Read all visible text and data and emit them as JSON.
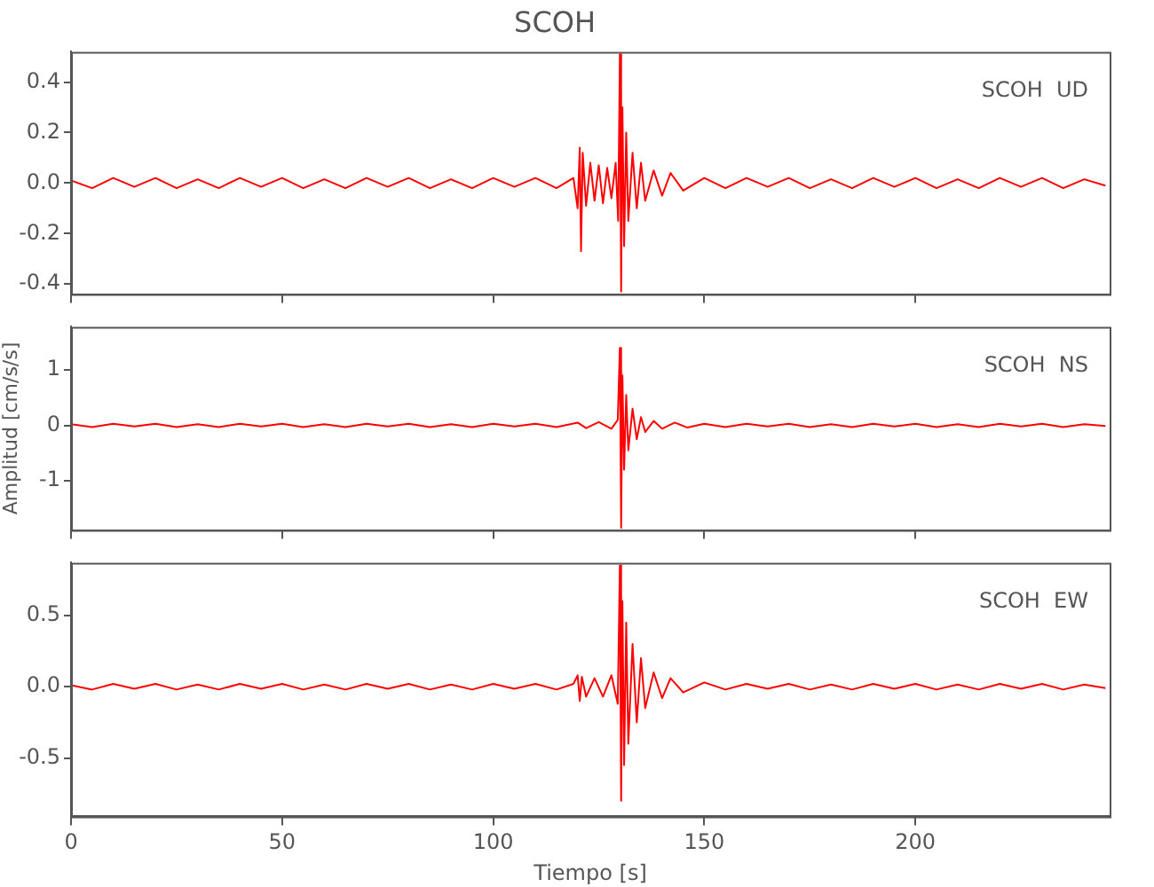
{
  "chart_data": [
    {
      "type": "line",
      "title": "SCOH",
      "annotations": [
        "SCOH  UD"
      ],
      "xlim": [
        0,
        246
      ],
      "xticks": [
        0,
        50,
        100,
        150,
        200
      ],
      "ylim": [
        -0.44,
        0.52
      ],
      "yticks": [
        -0.4,
        -0.2,
        {
          "value": 0,
          "label": "0.0"
        },
        0.2,
        0.4
      ],
      "tick_labels": "y",
      "legend": false,
      "grid": false,
      "series": [
        {
          "color": "#ff0000",
          "x": [
            0,
            5,
            10,
            15,
            20,
            25,
            30,
            35,
            40,
            45,
            50,
            55,
            60,
            65,
            70,
            75,
            80,
            85,
            90,
            95,
            100,
            105,
            110,
            115,
            119,
            120,
            120.5,
            120.8,
            121.2,
            122,
            123,
            124,
            125,
            126,
            127,
            128,
            129,
            129.6,
            130,
            130.3,
            130.6,
            131,
            131.5,
            132,
            133,
            134,
            135,
            136,
            138,
            140,
            142,
            145,
            150,
            155,
            160,
            165,
            170,
            175,
            180,
            185,
            190,
            195,
            200,
            205,
            210,
            215,
            220,
            225,
            230,
            235,
            240,
            245
          ],
          "values": [
            0.01,
            -0.02,
            0.02,
            -0.015,
            0.02,
            -0.02,
            0.015,
            -0.02,
            0.02,
            -0.015,
            0.02,
            -0.02,
            0.015,
            -0.02,
            0.02,
            -0.015,
            0.02,
            -0.02,
            0.015,
            -0.02,
            0.02,
            -0.015,
            0.02,
            -0.02,
            0.02,
            -0.1,
            0.14,
            -0.27,
            0.12,
            -0.09,
            0.08,
            -0.07,
            0.07,
            -0.08,
            0.06,
            -0.06,
            0.08,
            -0.15,
            0.51,
            -0.43,
            0.3,
            -0.25,
            0.2,
            -0.15,
            0.12,
            -0.1,
            0.08,
            -0.07,
            0.05,
            -0.05,
            0.04,
            -0.03,
            0.02,
            -0.02,
            0.02,
            -0.015,
            0.02,
            -0.02,
            0.015,
            -0.02,
            0.02,
            -0.015,
            0.02,
            -0.02,
            0.015,
            -0.02,
            0.02,
            -0.015,
            0.02,
            -0.02,
            0.015,
            -0.01
          ]
        }
      ]
    },
    {
      "type": "line",
      "ylabel": "Amplitud [cm/s/s]",
      "annotations": [
        "SCOH  NS"
      ],
      "xlim": [
        0,
        246
      ],
      "xticks": [
        0,
        50,
        100,
        150,
        200
      ],
      "ylim": [
        -1.89,
        1.78
      ],
      "yticks": [
        -1,
        0,
        1
      ],
      "tick_labels": "y",
      "legend": false,
      "grid": false,
      "series": [
        {
          "color": "#ff0000",
          "x": [
            0,
            5,
            10,
            15,
            20,
            25,
            30,
            35,
            40,
            45,
            50,
            55,
            60,
            65,
            70,
            75,
            80,
            85,
            90,
            95,
            100,
            105,
            110,
            115,
            120,
            122,
            125,
            128,
            129.5,
            130,
            130.3,
            130.6,
            131,
            131.5,
            132,
            133,
            134,
            135,
            136,
            138,
            140,
            143,
            146,
            150,
            155,
            160,
            165,
            170,
            175,
            180,
            185,
            190,
            195,
            200,
            205,
            210,
            215,
            220,
            225,
            230,
            235,
            240,
            245
          ],
          "values": [
            0.02,
            -0.03,
            0.03,
            -0.02,
            0.03,
            -0.03,
            0.02,
            -0.03,
            0.03,
            -0.02,
            0.03,
            -0.03,
            0.02,
            -0.03,
            0.03,
            -0.02,
            0.03,
            -0.03,
            0.02,
            -0.03,
            0.03,
            -0.02,
            0.03,
            -0.03,
            0.05,
            -0.05,
            0.06,
            -0.06,
            0.1,
            1.4,
            -1.85,
            0.9,
            -0.8,
            0.55,
            -0.45,
            0.3,
            -0.25,
            0.15,
            -0.12,
            0.08,
            -0.06,
            0.05,
            -0.04,
            0.03,
            -0.03,
            0.03,
            -0.02,
            0.03,
            -0.03,
            0.02,
            -0.03,
            0.03,
            -0.02,
            0.03,
            -0.03,
            0.02,
            -0.03,
            0.03,
            -0.02,
            0.03,
            -0.03,
            0.02,
            -0.01
          ]
        }
      ]
    },
    {
      "type": "line",
      "xlabel": "Tiempo [s]",
      "annotations": [
        "SCOH  EW"
      ],
      "xlim": [
        0,
        246
      ],
      "xticks": [
        0,
        50,
        100,
        150,
        200
      ],
      "ylim": [
        -0.91,
        0.87
      ],
      "yticks": [
        -0.5,
        {
          "value": 0,
          "label": "0.0"
        },
        0.5
      ],
      "legend": false,
      "grid": false,
      "series": [
        {
          "color": "#ff0000",
          "x": [
            0,
            5,
            10,
            15,
            20,
            25,
            30,
            35,
            40,
            45,
            50,
            55,
            60,
            65,
            70,
            75,
            80,
            85,
            90,
            95,
            100,
            105,
            110,
            115,
            119,
            120,
            120.5,
            121,
            122,
            124,
            126,
            128,
            129.5,
            130,
            130.3,
            130.6,
            131,
            131.5,
            132,
            133,
            134,
            135,
            136,
            138,
            140,
            142,
            145,
            150,
            155,
            160,
            165,
            170,
            175,
            180,
            185,
            190,
            195,
            200,
            205,
            210,
            215,
            220,
            225,
            230,
            235,
            240,
            245
          ],
          "values": [
            0.01,
            -0.02,
            0.02,
            -0.015,
            0.02,
            -0.02,
            0.015,
            -0.02,
            0.02,
            -0.015,
            0.02,
            -0.02,
            0.015,
            -0.02,
            0.02,
            -0.015,
            0.02,
            -0.02,
            0.015,
            -0.02,
            0.02,
            -0.015,
            0.02,
            -0.02,
            0.02,
            0.08,
            -0.1,
            0.07,
            -0.07,
            0.06,
            -0.07,
            0.08,
            -0.12,
            0.85,
            -0.8,
            0.6,
            -0.55,
            0.45,
            -0.4,
            0.3,
            -0.25,
            0.2,
            -0.15,
            0.1,
            -0.08,
            0.06,
            -0.04,
            0.03,
            -0.02,
            0.02,
            -0.015,
            0.02,
            -0.02,
            0.015,
            -0.02,
            0.02,
            -0.015,
            0.02,
            -0.02,
            0.015,
            -0.02,
            0.02,
            -0.015,
            0.02,
            -0.02,
            0.015,
            -0.01
          ]
        }
      ]
    }
  ]
}
